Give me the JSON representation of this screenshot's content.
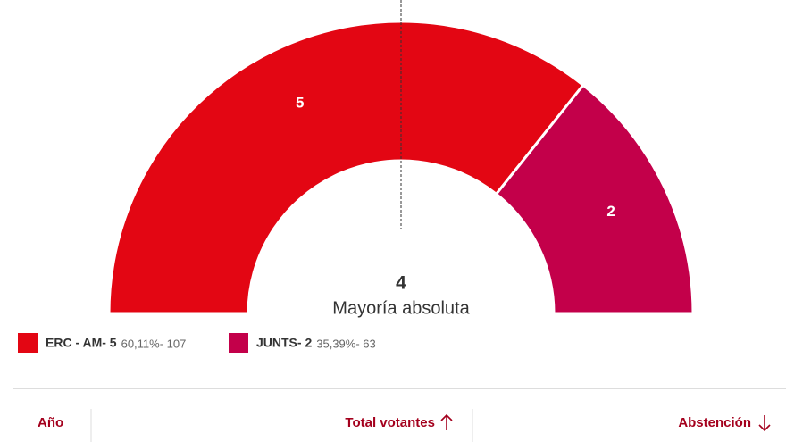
{
  "chart_data": {
    "type": "semicircle",
    "values": [
      5,
      2
    ],
    "colors": [
      "#e30613",
      "#c3004a"
    ],
    "legend": [
      {
        "label": "ERC - AM- 5",
        "detail": "60,11%- 107"
      },
      {
        "label": "JUNTS- 2",
        "detail": "35,39%- 63"
      }
    ],
    "majority": 4,
    "majority_label": "Mayoría absoluta"
  },
  "table": {
    "headers": [
      "Año",
      "Total votantes",
      "Abstención"
    ]
  }
}
